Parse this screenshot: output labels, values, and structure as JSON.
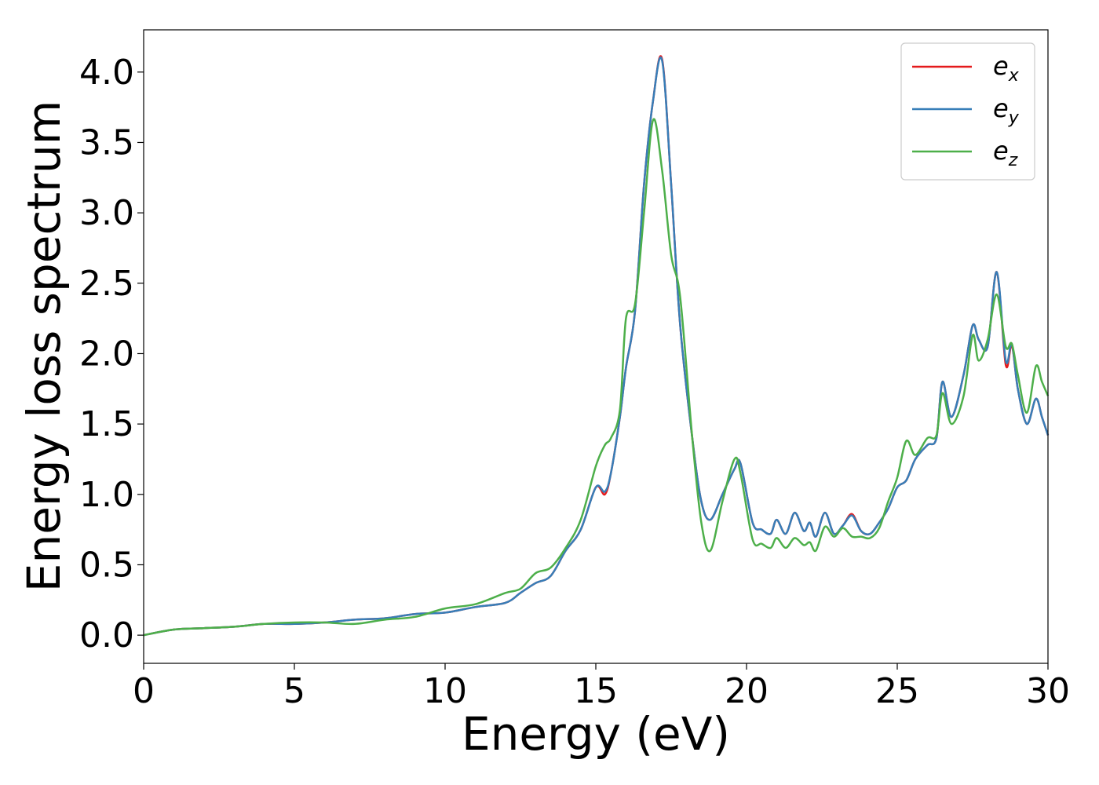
{
  "chart_data": {
    "type": "line",
    "xlabel": "Energy (eV)",
    "ylabel": "Energy loss spectrum",
    "xlim": [
      0,
      30
    ],
    "ylim": [
      -0.2,
      4.3
    ],
    "xticks": [
      0,
      5,
      10,
      15,
      20,
      25,
      30
    ],
    "xtick_labels": [
      "0",
      "5",
      "10",
      "15",
      "20",
      "25",
      "30"
    ],
    "yticks": [
      0.0,
      0.5,
      1.0,
      1.5,
      2.0,
      2.5,
      3.0,
      3.5,
      4.0
    ],
    "ytick_labels": [
      "0.0",
      "0.5",
      "1.0",
      "1.5",
      "2.0",
      "2.5",
      "3.0",
      "3.5",
      "4.0"
    ],
    "grid": false,
    "legend_position": "top-right",
    "series": [
      {
        "name": "e_x",
        "legend_base": "e",
        "legend_sub": "x",
        "color": "#e41a1c",
        "x": [
          0,
          1,
          2,
          3,
          4,
          5,
          6,
          7,
          8,
          9,
          10,
          11,
          12,
          12.5,
          13,
          13.5,
          14,
          14.5,
          15,
          15.3,
          15.5,
          15.8,
          16,
          16.3,
          16.6,
          16.9,
          17.2,
          17.5,
          17.8,
          18.2,
          18.5,
          18.8,
          19.2,
          19.6,
          19.8,
          20.2,
          20.5,
          20.8,
          21,
          21.3,
          21.6,
          21.9,
          22.1,
          22.3,
          22.6,
          22.9,
          23.2,
          23.5,
          23.8,
          24.1,
          24.4,
          24.7,
          25,
          25.3,
          25.6,
          26,
          26.3,
          26.5,
          26.8,
          27.2,
          27.5,
          27.7,
          28,
          28.3,
          28.6,
          28.8,
          29,
          29.3,
          29.6,
          29.8,
          30
        ],
        "y": [
          0.0,
          0.04,
          0.05,
          0.06,
          0.08,
          0.08,
          0.09,
          0.11,
          0.12,
          0.15,
          0.16,
          0.2,
          0.23,
          0.3,
          0.37,
          0.42,
          0.6,
          0.75,
          1.05,
          1.0,
          1.15,
          1.55,
          1.9,
          2.3,
          3.2,
          3.8,
          4.09,
          3.2,
          2.2,
          1.4,
          0.95,
          0.82,
          1.0,
          1.18,
          1.22,
          0.8,
          0.75,
          0.72,
          0.82,
          0.72,
          0.87,
          0.74,
          0.8,
          0.7,
          0.87,
          0.72,
          0.78,
          0.86,
          0.74,
          0.72,
          0.8,
          0.9,
          1.05,
          1.1,
          1.25,
          1.35,
          1.4,
          1.8,
          1.55,
          1.85,
          2.2,
          2.1,
          2.05,
          2.58,
          1.92,
          2.06,
          1.75,
          1.5,
          1.68,
          1.55,
          1.42
        ]
      },
      {
        "name": "e_y",
        "legend_base": "e",
        "legend_sub": "y",
        "color": "#377eb8",
        "x": [
          0,
          1,
          2,
          3,
          4,
          5,
          6,
          7,
          8,
          9,
          10,
          11,
          12,
          12.5,
          13,
          13.5,
          14,
          14.5,
          15,
          15.3,
          15.5,
          15.8,
          16,
          16.3,
          16.6,
          16.9,
          17.2,
          17.5,
          17.8,
          18.2,
          18.5,
          18.8,
          19.2,
          19.6,
          19.8,
          20.2,
          20.5,
          20.8,
          21,
          21.3,
          21.6,
          21.9,
          22.1,
          22.3,
          22.6,
          22.9,
          23.2,
          23.5,
          23.8,
          24.1,
          24.4,
          24.7,
          25,
          25.3,
          25.6,
          26,
          26.3,
          26.5,
          26.8,
          27.2,
          27.5,
          27.7,
          28,
          28.3,
          28.6,
          28.8,
          29,
          29.3,
          29.6,
          29.8,
          30
        ],
        "y": [
          0.0,
          0.04,
          0.05,
          0.06,
          0.08,
          0.08,
          0.09,
          0.11,
          0.12,
          0.15,
          0.16,
          0.2,
          0.23,
          0.3,
          0.37,
          0.42,
          0.6,
          0.75,
          1.05,
          1.02,
          1.15,
          1.55,
          1.9,
          2.3,
          3.2,
          3.8,
          4.08,
          3.2,
          2.2,
          1.4,
          0.95,
          0.82,
          1.0,
          1.18,
          1.22,
          0.8,
          0.75,
          0.72,
          0.82,
          0.72,
          0.87,
          0.74,
          0.8,
          0.7,
          0.87,
          0.72,
          0.78,
          0.85,
          0.74,
          0.72,
          0.8,
          0.9,
          1.05,
          1.1,
          1.25,
          1.35,
          1.4,
          1.8,
          1.55,
          1.85,
          2.2,
          2.1,
          2.05,
          2.58,
          1.95,
          2.07,
          1.75,
          1.5,
          1.68,
          1.55,
          1.42
        ]
      },
      {
        "name": "e_z",
        "legend_base": "e",
        "legend_sub": "z",
        "color": "#4daf4a",
        "x": [
          0,
          1,
          2,
          3,
          4,
          5,
          6,
          7,
          8,
          9,
          10,
          11,
          12,
          12.5,
          13,
          13.5,
          14,
          14.5,
          15,
          15.3,
          15.5,
          15.8,
          16,
          16.3,
          16.6,
          16.9,
          17.2,
          17.5,
          17.8,
          18.2,
          18.5,
          18.8,
          19.2,
          19.6,
          19.8,
          20.2,
          20.5,
          20.8,
          21,
          21.3,
          21.6,
          21.9,
          22.1,
          22.3,
          22.6,
          22.9,
          23.2,
          23.5,
          23.8,
          24.1,
          24.4,
          24.7,
          25,
          25.3,
          25.6,
          26,
          26.3,
          26.5,
          26.8,
          27.2,
          27.5,
          27.7,
          28,
          28.3,
          28.6,
          28.8,
          29,
          29.3,
          29.6,
          29.8,
          30
        ],
        "y": [
          0.0,
          0.04,
          0.05,
          0.06,
          0.08,
          0.09,
          0.09,
          0.08,
          0.11,
          0.13,
          0.19,
          0.22,
          0.3,
          0.33,
          0.44,
          0.48,
          0.62,
          0.82,
          1.2,
          1.35,
          1.4,
          1.6,
          2.25,
          2.35,
          3.0,
          3.66,
          3.3,
          2.7,
          2.4,
          1.4,
          0.8,
          0.6,
          0.95,
          1.25,
          1.15,
          0.68,
          0.65,
          0.62,
          0.69,
          0.62,
          0.69,
          0.64,
          0.66,
          0.6,
          0.77,
          0.7,
          0.76,
          0.7,
          0.7,
          0.69,
          0.76,
          0.95,
          1.12,
          1.38,
          1.28,
          1.4,
          1.42,
          1.72,
          1.5,
          1.7,
          2.13,
          1.95,
          2.1,
          2.42,
          2.05,
          2.07,
          1.85,
          1.58,
          1.91,
          1.8,
          1.7
        ]
      }
    ]
  }
}
